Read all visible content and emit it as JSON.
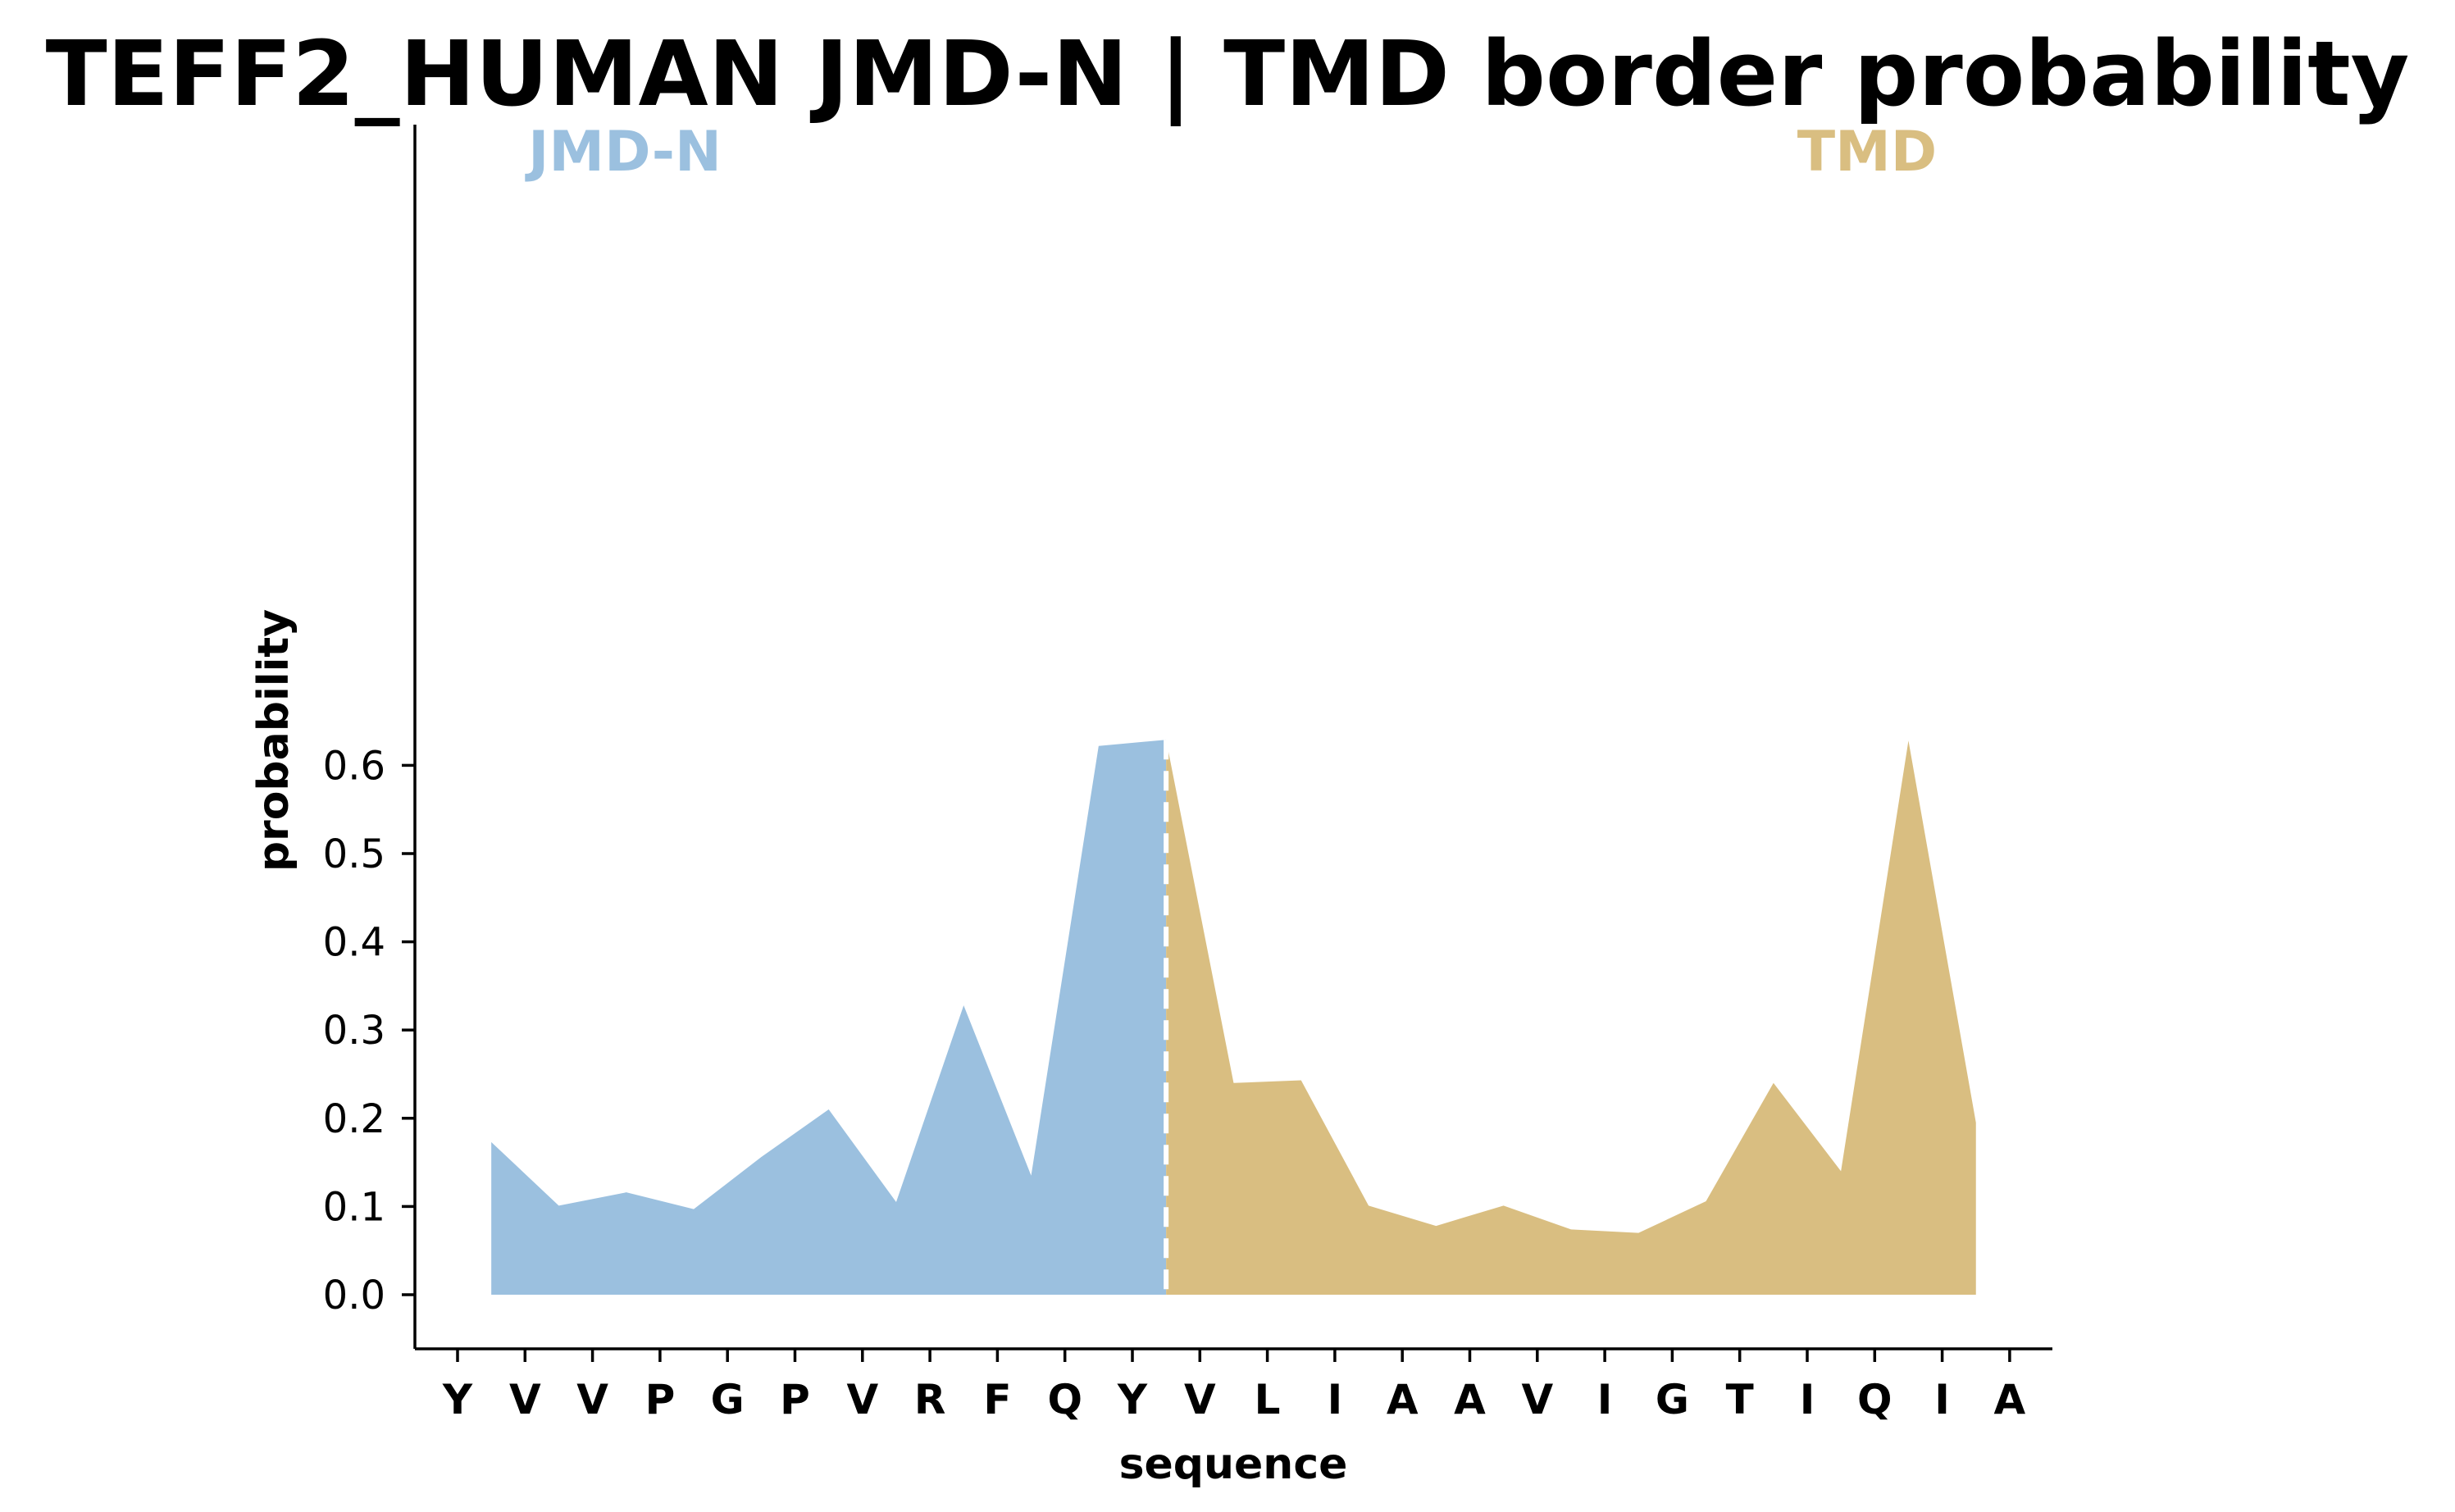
{
  "chart_data": {
    "type": "area",
    "title": "TEFF2_HUMAN JMD-N | TMD border probability",
    "xlabel": "sequence",
    "ylabel": "probability",
    "ylim": [
      -0.03,
      0.66
    ],
    "yticks": [
      "0.0",
      "0.1",
      "0.2",
      "0.3",
      "0.4",
      "0.5",
      "0.6"
    ],
    "ytick_values": [
      0.0,
      0.1,
      0.2,
      0.3,
      0.4,
      0.5,
      0.6
    ],
    "categories": [
      "Y",
      "V",
      "V",
      "P",
      "G",
      "P",
      "V",
      "R",
      "F",
      "Q",
      "Y",
      "V",
      "L",
      "I",
      "A",
      "A",
      "V",
      "I",
      "G",
      "T",
      "I",
      "Q",
      "I",
      "A"
    ],
    "border_index": 10.5,
    "grid": false,
    "legend": "none",
    "regions": [
      {
        "name": "JMD-N",
        "color": "#9bc0df",
        "label_position": "top-left"
      },
      {
        "name": "TMD",
        "color": "#d9be81",
        "label_position": "top-right"
      }
    ],
    "series": [
      {
        "name": "JMD-N",
        "x": [
          0.5,
          1.5,
          2.5,
          3.5,
          4.5,
          5.5,
          6.5,
          7.5,
          8.5,
          9.5,
          10.5
        ],
        "values": [
          0.173,
          0.101,
          0.116,
          0.097,
          0.156,
          0.21,
          0.105,
          0.328,
          0.135,
          0.622,
          0.629
        ]
      },
      {
        "name": "TMD",
        "x": [
          10.5,
          11.5,
          12.5,
          13.5,
          14.5,
          15.5,
          16.5,
          17.5,
          18.5,
          19.5,
          20.5,
          21.5,
          22.5
        ],
        "values": [
          0.629,
          0.24,
          0.243,
          0.101,
          0.078,
          0.101,
          0.074,
          0.07,
          0.106,
          0.24,
          0.14,
          0.628,
          0.195
        ]
      }
    ]
  }
}
